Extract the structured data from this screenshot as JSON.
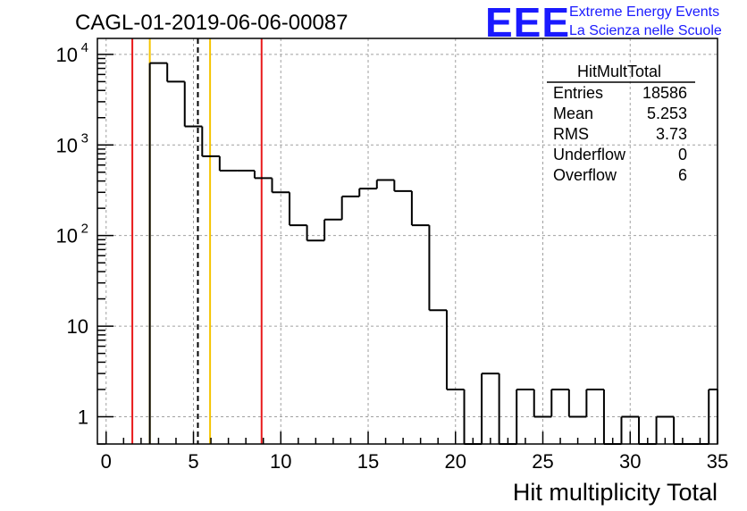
{
  "chart_data": {
    "type": "histogram",
    "title": "CAGL-01-2019-06-06-00087",
    "xlabel": "Hit multiplicity Total",
    "ylabel": "",
    "y_scale": "log",
    "xlim": [
      -0.5,
      35
    ],
    "ylim": [
      0.5,
      15000
    ],
    "grid": true,
    "bin_edges": [
      2.5,
      3.5,
      4.5,
      5.5,
      6.5,
      7.5,
      8.5,
      9.5,
      10.5,
      11.5,
      12.5,
      13.5,
      14.5,
      15.5,
      16.5,
      17.5,
      18.5,
      19.5,
      20.5,
      21.5,
      22.5,
      23.5,
      24.5,
      25.5,
      26.5,
      27.5,
      28.5,
      29.5,
      30.5,
      31.5,
      32.5,
      33.5,
      34.5,
      35
    ],
    "counts": [
      8000,
      5000,
      1600,
      750,
      520,
      520,
      430,
      300,
      130,
      88,
      150,
      270,
      330,
      410,
      310,
      130,
      15,
      2,
      0,
      3,
      0,
      2,
      1,
      2,
      1,
      2,
      0,
      1,
      0,
      1,
      0,
      0,
      2
    ],
    "x_ticks": [
      0,
      5,
      10,
      15,
      20,
      25,
      30,
      35
    ],
    "x_tick_labels": [
      "0",
      "5",
      "10",
      "15",
      "20",
      "25",
      "30",
      "35"
    ],
    "y_ticks": [
      1,
      10,
      100,
      1000,
      10000
    ],
    "y_tick_labels": [
      {
        "base": "1",
        "exp": ""
      },
      {
        "base": "10",
        "exp": ""
      },
      {
        "base": "10",
        "exp": "2"
      },
      {
        "base": "10",
        "exp": "3"
      },
      {
        "base": "10",
        "exp": "4"
      }
    ],
    "vertical_lines": [
      {
        "x": 1.5,
        "color": "#e8191b",
        "style": "solid"
      },
      {
        "x": 2.5,
        "color": "#f5c400",
        "style": "solid"
      },
      {
        "x": 5.253,
        "color": "#000000",
        "style": "dashed"
      },
      {
        "x": 5.95,
        "color": "#f5c400",
        "style": "solid"
      },
      {
        "x": 8.9,
        "color": "#e8191b",
        "style": "solid"
      }
    ],
    "stats_box": {
      "title": "HitMultTotal",
      "rows": [
        {
          "label": "Entries",
          "value": "18586"
        },
        {
          "label": "Mean",
          "value": "5.253"
        },
        {
          "label": "RMS",
          "value": "3.73"
        },
        {
          "label": "Underflow",
          "value": "0"
        },
        {
          "label": "Overflow",
          "value": "6"
        }
      ]
    }
  },
  "logo": {
    "mark": "EEE",
    "line1": "Extreme Energy Events",
    "line2": "La Scienza nelle Scuole"
  },
  "colors": {
    "logo": "#1a1aff",
    "red_line": "#e8191b",
    "yellow_line": "#f5c400",
    "grid": "#a0a0a0"
  }
}
